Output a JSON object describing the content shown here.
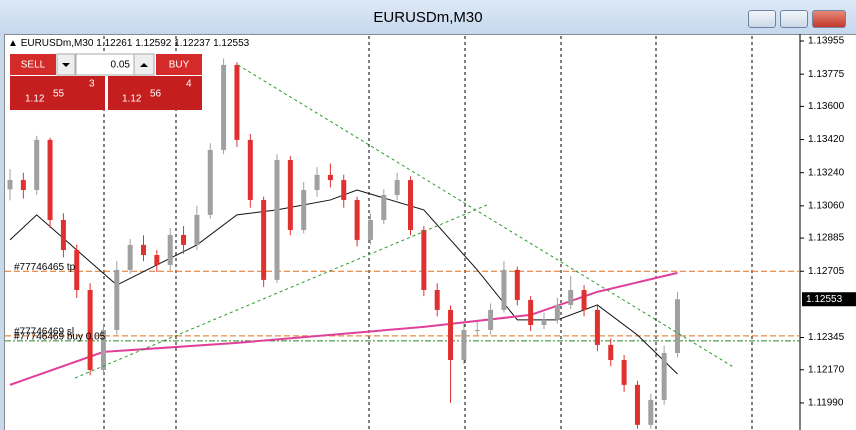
{
  "window": {
    "title": "EURUSDm,M30"
  },
  "trade_panel": {
    "sell": "SELL",
    "buy": "BUY",
    "lot": "0.05",
    "sell_price": {
      "big": "1.12",
      "pips": "55",
      "point": "3"
    },
    "buy_price": {
      "big": "1.12",
      "pips": "56",
      "point": "4"
    }
  },
  "chart_data": {
    "type": "candlestick",
    "symbol": "EURUSDm,M30",
    "bull_color": "#a0a0a0",
    "bear_color": "#e03030",
    "ylim": [
      1.11843,
      1.13993
    ],
    "yticks": [
      1.13955,
      1.13775,
      {
        "value": 1.136,
        "label": "1.13600"
      },
      {
        "value": 1.1342,
        "label": "1.13420"
      },
      {
        "value": 1.1324,
        "label": "1.13240"
      },
      {
        "value": 1.1306,
        "label": "1.13060"
      },
      1.12885,
      1.12705,
      1.12345,
      {
        "value": 1.1217,
        "label": "1.12170"
      },
      {
        "value": 1.1199,
        "label": "1.11990"
      }
    ],
    "open": [
      1.1315,
      1.132,
      1.13146,
      1.13418,
      1.12983,
      1.1282,
      1.12603,
      1.12169,
      1.12386,
      1.12712,
      1.12848,
      1.12793,
      1.12739,
      1.12902,
      1.12848,
      1.13011,
      1.13363,
      1.13825,
      1.13418,
      1.13092,
      1.12658,
      1.13309,
      1.12929,
      1.13146,
      1.13228,
      1.132,
      1.13092,
      1.12875,
      1.12983,
      1.13119,
      1.132,
      1.12929,
      1.12603,
      1.12495,
      1.12223,
      1.12386,
      1.12386,
      1.12495,
      1.12712,
      1.12549,
      1.12413,
      1.12441,
      1.12522,
      1.12603,
      1.12495,
      1.12305,
      1.12223,
      1.12088,
      1.11871,
      1.12006,
      1.12261
    ],
    "high": [
      1.1326,
      1.1324,
      1.1344,
      1.1343,
      1.1302,
      1.1285,
      1.1264,
      1.1242,
      1.1276,
      1.1288,
      1.129,
      1.1282,
      1.1294,
      1.1295,
      1.1306,
      1.134,
      1.1386,
      1.1384,
      1.1345,
      1.1311,
      1.1334,
      1.1333,
      1.1319,
      1.1327,
      1.1329,
      1.1323,
      1.1311,
      1.1302,
      1.1315,
      1.1324,
      1.1322,
      1.1295,
      1.1264,
      1.1252,
      1.1242,
      1.1243,
      1.1253,
      1.1276,
      1.1273,
      1.1257,
      1.1248,
      1.1256,
      1.1268,
      1.1263,
      1.1252,
      1.1234,
      1.1225,
      1.1211,
      1.1204,
      1.123,
      1.12592
    ],
    "low": [
      1.1309,
      1.131,
      1.1312,
      1.1294,
      1.1278,
      1.1256,
      1.1214,
      1.1215,
      1.1236,
      1.1269,
      1.1276,
      1.127,
      1.1271,
      1.128,
      1.1282,
      1.1299,
      1.1334,
      1.1338,
      1.1305,
      1.1262,
      1.1264,
      1.129,
      1.1291,
      1.1311,
      1.1316,
      1.1305,
      1.1284,
      1.1285,
      1.1296,
      1.1309,
      1.129,
      1.1257,
      1.1246,
      1.1199,
      1.122,
      1.1235,
      1.1236,
      1.1248,
      1.1252,
      1.1238,
      1.1239,
      1.1242,
      1.125,
      1.1246,
      1.1227,
      1.1219,
      1.1205,
      1.1185,
      1.1185,
      1.1198,
      1.12237
    ],
    "close": [
      1.132,
      1.13146,
      1.13418,
      1.12983,
      1.1282,
      1.12603,
      1.12169,
      1.12386,
      1.12712,
      1.12848,
      1.12793,
      1.12739,
      1.12902,
      1.12848,
      1.13011,
      1.13363,
      1.13825,
      1.13418,
      1.13092,
      1.12658,
      1.13309,
      1.12929,
      1.13146,
      1.13228,
      1.132,
      1.13092,
      1.12875,
      1.12983,
      1.13119,
      1.132,
      1.12929,
      1.12603,
      1.12495,
      1.12223,
      1.12386,
      1.12386,
      1.12495,
      1.12712,
      1.12549,
      1.12413,
      1.12441,
      1.12522,
      1.12603,
      1.12495,
      1.12305,
      1.12223,
      1.12088,
      1.11871,
      1.12006,
      1.12261,
      1.12553
    ],
    "overlays": [
      {
        "color": "#111111",
        "x": [
          0,
          2,
          5,
          8,
          11,
          14,
          17,
          20,
          24,
          26,
          31,
          35,
          38,
          41,
          44,
          47,
          50
        ],
        "values": [
          1.12875,
          1.13011,
          1.1282,
          1.1263,
          1.12739,
          1.12848,
          1.13011,
          1.13038,
          1.13092,
          1.13146,
          1.13038,
          1.12712,
          1.12441,
          1.12441,
          1.12522,
          1.12359,
          1.12147
        ]
      },
      {
        "color": "#e0409a",
        "x": [
          0,
          7,
          17,
          31,
          39,
          44,
          50
        ],
        "values": [
          1.12088,
          1.12267,
          1.12316,
          1.12403,
          1.12468,
          1.12593,
          1.12696
        ]
      }
    ],
    "orders": [
      {
        "label": "#77746465 tp",
        "price": 1.12705,
        "color": "#e07020"
      },
      {
        "label": "#77746469 sl",
        "price": 1.12354,
        "color": "#e07020"
      },
      {
        "label": "#77746469 buy 0.05",
        "price": 1.12327,
        "color": "#2a8a2a"
      }
    ]
  }
}
